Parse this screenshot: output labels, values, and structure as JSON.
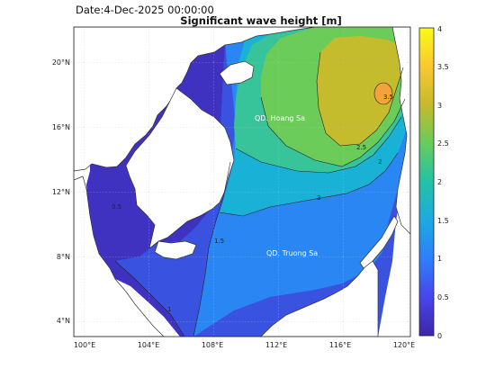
{
  "header": {
    "date_text": "Date:4-Dec-2025 00:00:00",
    "title": "Significant wave height [m]"
  },
  "map": {
    "x_ticks": [
      "100°E",
      "104°E",
      "108°E",
      "112°E",
      "116°E",
      "120°E"
    ],
    "y_ticks": [
      "4°N",
      "8°N",
      "12°N",
      "16°N",
      "20°N"
    ],
    "place_labels": [
      "QD. Hoang Sa",
      "QD. Truong Sa"
    ],
    "contour_labels": [
      "0.5",
      "1",
      "1.5",
      "2",
      "2.5",
      "3",
      "3.5"
    ]
  },
  "colorbar": {
    "ticks": [
      "0",
      "0.5",
      "1",
      "1.5",
      "2",
      "2.5",
      "3",
      "3.5",
      "4"
    ],
    "range": [
      0,
      4
    ],
    "colors": [
      "#3e26a8",
      "#4746eb",
      "#2f7efb",
      "#1caadf",
      "#24c2a6",
      "#67cc5c",
      "#c6ba2c",
      "#f9c831",
      "#f9fb15"
    ]
  },
  "legend_colors": {
    "land": "#ffffff",
    "sea_low": "#3e26a8",
    "sea_high": "#f9fb15"
  }
}
